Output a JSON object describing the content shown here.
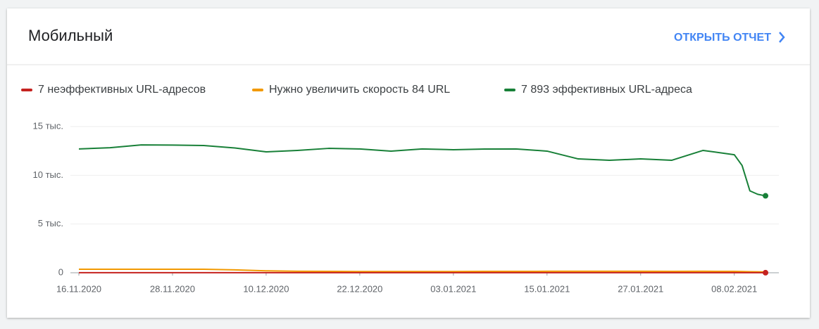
{
  "header": {
    "action": "ОТКРЫТЬ ОТЧЕТ"
  },
  "chart_data": {
    "type": "line",
    "title": "Мобильный",
    "x": [
      "16.11.2020",
      "20.11.2020",
      "24.11.2020",
      "28.11.2020",
      "02.12.2020",
      "06.12.2020",
      "10.12.2020",
      "14.12.2020",
      "18.12.2020",
      "22.12.2020",
      "26.12.2020",
      "30.12.2020",
      "03.01.2021",
      "07.01.2021",
      "11.01.2021",
      "15.01.2021",
      "19.01.2021",
      "23.01.2021",
      "27.01.2021",
      "31.01.2021",
      "04.02.2021",
      "08.02.2021",
      "09.02.2021",
      "10.02.2021",
      "11.02.2021",
      "12.02.2021"
    ],
    "series": [
      {
        "name": "7 неэффективных URL-адресов",
        "color": "#c5221f",
        "values": [
          10,
          10,
          10,
          10,
          10,
          10,
          10,
          10,
          10,
          10,
          10,
          10,
          10,
          10,
          10,
          10,
          10,
          10,
          10,
          10,
          10,
          10,
          9,
          8,
          8,
          7
        ]
      },
      {
        "name": "Нужно увеличить скорость 84 URL",
        "color": "#f29900",
        "values": [
          360,
          360,
          360,
          360,
          360,
          300,
          200,
          150,
          140,
          130,
          130,
          130,
          130,
          140,
          140,
          150,
          150,
          150,
          150,
          140,
          150,
          140,
          130,
          110,
          100,
          84
        ]
      },
      {
        "name": "7 893 эффективных URL-адреса",
        "color": "#188038",
        "values": [
          12700,
          12830,
          13120,
          13100,
          13050,
          12800,
          12400,
          12550,
          12760,
          12700,
          12480,
          12700,
          12620,
          12690,
          12700,
          12480,
          11680,
          11540,
          11680,
          11540,
          12550,
          12110,
          11000,
          8400,
          8050,
          7893
        ]
      }
    ],
    "ylim": [
      0,
      15000
    ],
    "yticks": [
      0,
      {
        "value": 5000,
        "label": "5 тыс."
      },
      {
        "value": 10000,
        "label": "10 тыс."
      },
      {
        "value": 15000,
        "label": "15 тыс."
      }
    ],
    "xticks": [
      "16.11.2020",
      "28.11.2020",
      "10.12.2020",
      "22.12.2020",
      "03.01.2021",
      "15.01.2021",
      "27.01.2021",
      "08.02.2021"
    ],
    "xlim": [
      "16.11.2020",
      "13.02.2021"
    ],
    "grid": true
  }
}
